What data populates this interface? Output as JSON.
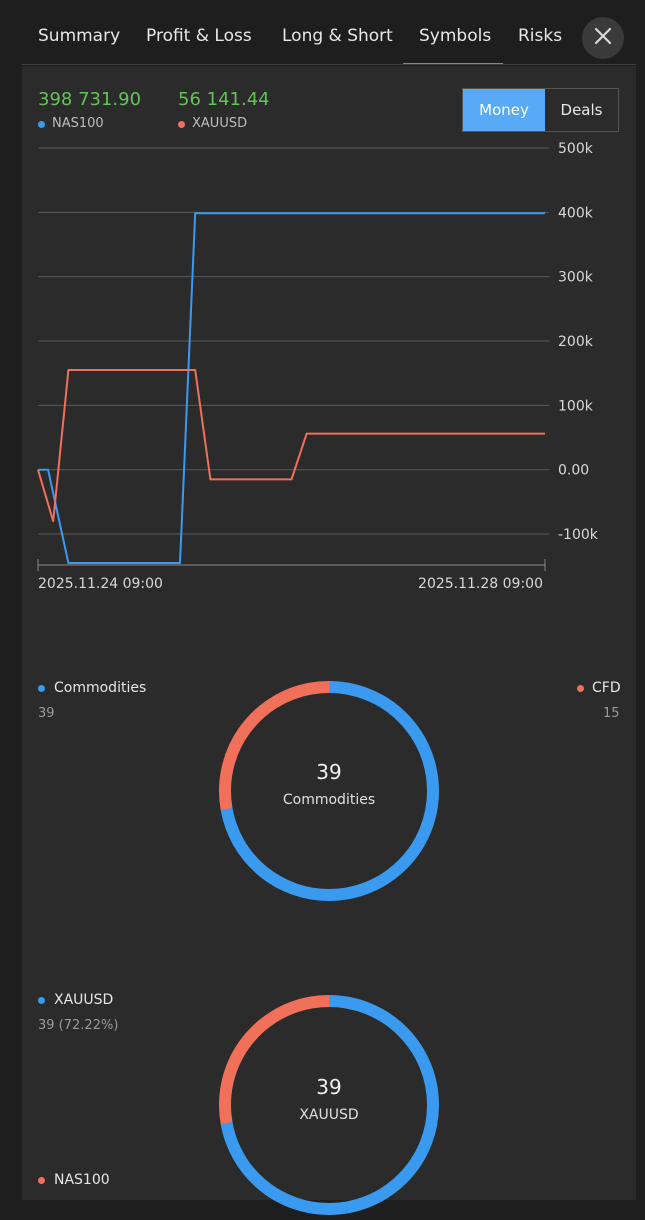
{
  "tabs": [
    {
      "label": "Summary"
    },
    {
      "label": "Profit & Loss"
    },
    {
      "label": "Long & Short"
    },
    {
      "label": "Symbols",
      "active": true
    },
    {
      "label": "Risks"
    }
  ],
  "close_icon": "close-icon",
  "toggle": {
    "options": [
      "Money",
      "Deals"
    ],
    "selected": "Money"
  },
  "colors": {
    "accent": "#3a9af0",
    "nas100": "#3a9af0",
    "xauusd": "#f0705a",
    "positive": "#63c357"
  },
  "chart_data": {
    "type": "line",
    "header_values": [
      {
        "value": "398 731.90",
        "legend": "NAS100"
      },
      {
        "value": "56 141.44",
        "legend": "XAUUSD"
      }
    ],
    "x_tick_labels": [
      "2025.11.24 09:00",
      "2025.11.28 09:00"
    ],
    "y_tick_labels": [
      "500k",
      "400k",
      "300k",
      "200k",
      "100k",
      "0.00",
      "-100k"
    ],
    "ylim": [
      -145000,
      500000
    ],
    "legend_placement": "top-left",
    "grid": true,
    "series": [
      {
        "name": "NAS100",
        "color": "#3a9af0",
        "x": [
          0,
          0.02,
          0.06,
          0.28,
          0.31,
          1.0
        ],
        "y": [
          0,
          0,
          -145000,
          -145000,
          398731.9,
          398731.9
        ]
      },
      {
        "name": "XAUUSD",
        "color": "#f0705a",
        "x": [
          0,
          0.03,
          0.06,
          0.31,
          0.34,
          0.5,
          0.53,
          1.0
        ],
        "y": [
          0,
          -80000,
          155000,
          155000,
          -15000,
          -15000,
          56141.44,
          56141.44
        ]
      }
    ]
  },
  "donut1": {
    "center_value": "39",
    "center_label": "Commodities",
    "left_label": "Commodities",
    "left_value": "39",
    "right_label": "CFD",
    "right_value": "15",
    "fractions": {
      "Commodities": 0.7222,
      "CFD": 0.2778
    }
  },
  "donut2": {
    "center_value": "39",
    "center_label": "XAUUSD",
    "top_label": "XAUUSD",
    "top_value": "39 (72.22%)",
    "bottom_label": "NAS100",
    "fractions": {
      "XAUUSD": 0.7222,
      "NAS100": 0.2778
    }
  }
}
